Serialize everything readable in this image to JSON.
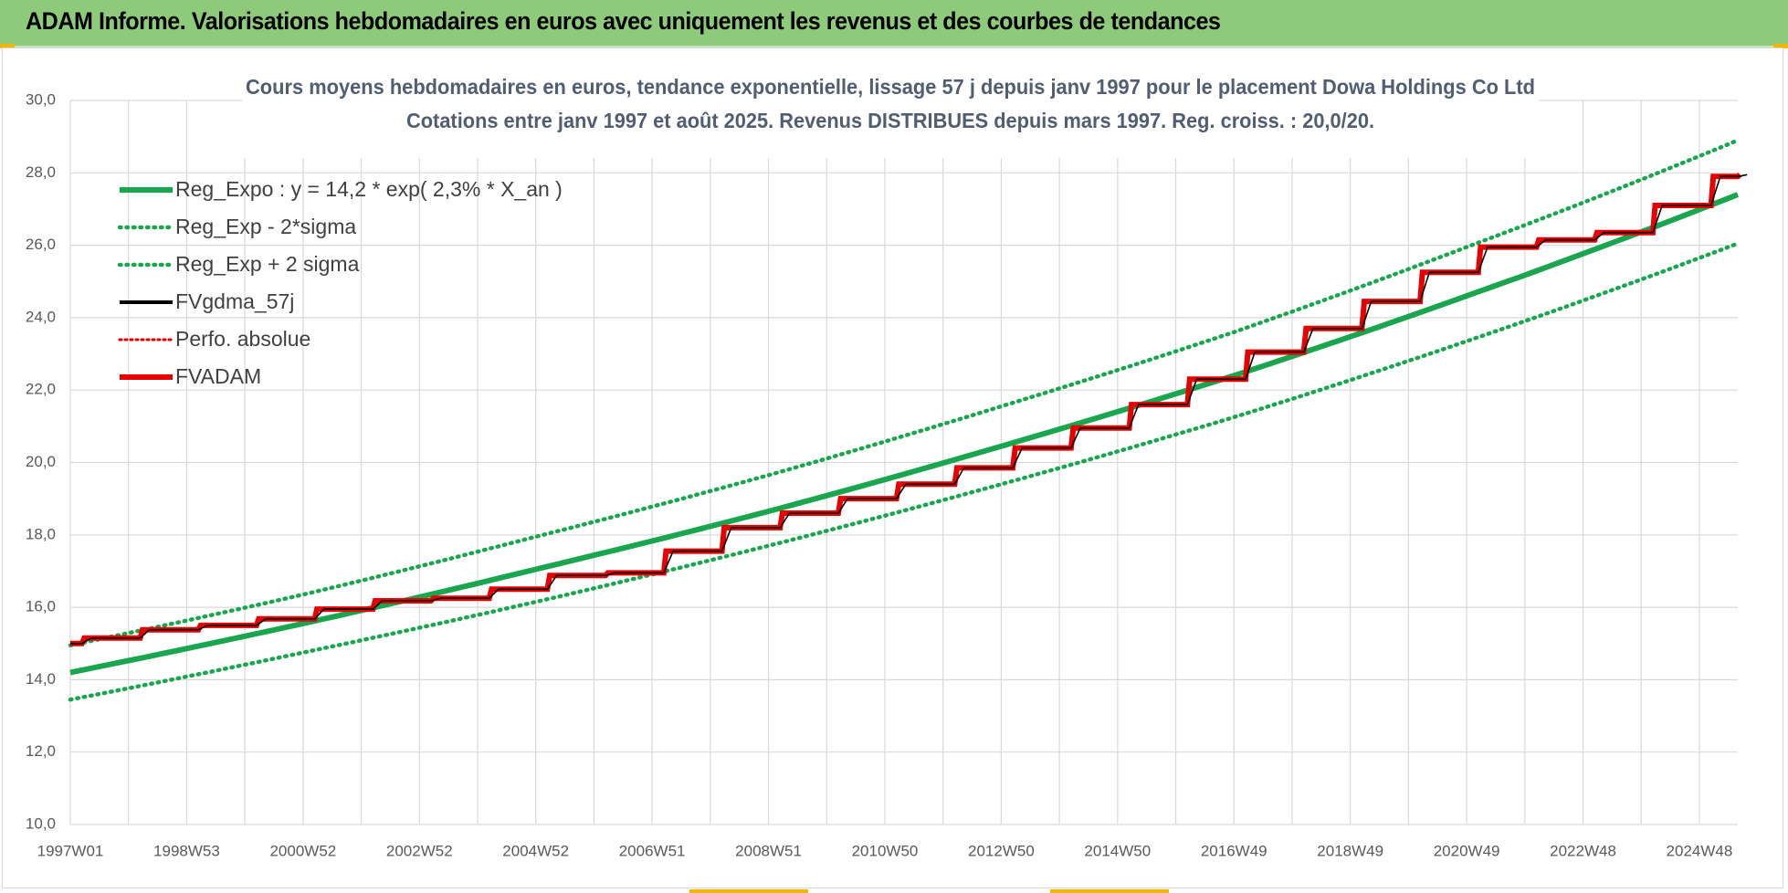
{
  "header": {
    "title": "ADAM Informe. Valorisations hebdomadaires en euros avec uniquement les revenus et des courbes de tendances"
  },
  "colors": {
    "header_bg": "#8dcb7a",
    "reg_expo": "#1aa64e",
    "sigma_bands": "#1aa64e",
    "fvgdma": "#000000",
    "perfo": "#e00000",
    "fvadam": "#e60000",
    "title_text": "#505d73"
  },
  "chart_data": {
    "type": "line",
    "title": [
      "Cours moyens hebdomadaires en euros, tendance exponentielle, lissage 57 j depuis janv 1997  pour le placement Dowa Holdings Co Ltd",
      "Cotations entre janv 1997 et août 2025.  Revenus DISTRIBUES depuis mars 1997. Reg. croiss. : 20,0/20."
    ],
    "xlabel": "",
    "ylabel": "",
    "ylim": [
      10,
      30
    ],
    "y_ticks": [
      "10,0",
      "12,0",
      "14,0",
      "16,0",
      "18,0",
      "20,0",
      "22,0",
      "24,0",
      "26,0",
      "28,0",
      "30,0"
    ],
    "x_range_years": [
      1997.0,
      2025.66
    ],
    "x_ticks": [
      {
        "label": "1997W01",
        "year": 1997.0
      },
      {
        "label": "1998W53",
        "year": 1999.0
      },
      {
        "label": "2000W52",
        "year": 2001.0
      },
      {
        "label": "2002W52",
        "year": 2003.0
      },
      {
        "label": "2004W52",
        "year": 2005.0
      },
      {
        "label": "2006W51",
        "year": 2007.0
      },
      {
        "label": "2008W51",
        "year": 2009.0
      },
      {
        "label": "2010W50",
        "year": 2011.0
      },
      {
        "label": "2012W50",
        "year": 2013.0
      },
      {
        "label": "2014W50",
        "year": 2015.0
      },
      {
        "label": "2016W49",
        "year": 2017.0
      },
      {
        "label": "2018W49",
        "year": 2019.0
      },
      {
        "label": "2020W49",
        "year": 2021.0
      },
      {
        "label": "2022W48",
        "year": 2023.0
      },
      {
        "label": "2024W48",
        "year": 2025.0
      }
    ],
    "grid": true,
    "legend_position": "top-left",
    "series": [
      {
        "name": "Reg_Expo : y = 14,2 * exp( 2,3% *  X_an )",
        "style": "solid-thick",
        "color": "#1aa64e",
        "x": [
          1997.0,
          2001.0,
          2005.0,
          2009.0,
          2013.0,
          2017.0,
          2021.0,
          2025.66
        ],
        "y": [
          14.2,
          15.55,
          17.05,
          18.65,
          20.45,
          22.4,
          24.6,
          27.4
        ]
      },
      {
        "name": "Reg_Exp - 2*sigma",
        "style": "dotted",
        "color": "#1aa64e",
        "x": [
          1997.0,
          2001.0,
          2005.0,
          2009.0,
          2013.0,
          2017.0,
          2021.0,
          2025.66
        ],
        "y": [
          13.45,
          14.75,
          16.15,
          17.7,
          19.4,
          21.25,
          23.35,
          26.05
        ]
      },
      {
        "name": "Reg_Exp + 2 sigma",
        "style": "dotted",
        "color": "#1aa64e",
        "x": [
          1997.0,
          2001.0,
          2005.0,
          2009.0,
          2013.0,
          2017.0,
          2021.0,
          2025.66
        ],
        "y": [
          14.95,
          16.35,
          17.95,
          19.65,
          21.55,
          23.6,
          25.95,
          28.9
        ]
      },
      {
        "name": "FVgdma_57j",
        "style": "solid",
        "color": "#000000",
        "x": [
          1997.0,
          1997.2,
          1998.2,
          1999.2,
          2000.2,
          2001.2,
          2002.2,
          2003.2,
          2004.2,
          2005.2,
          2006.2,
          2007.2,
          2008.2,
          2009.2,
          2010.2,
          2011.2,
          2012.2,
          2013.2,
          2014.2,
          2015.2,
          2016.2,
          2017.2,
          2018.2,
          2019.2,
          2020.2,
          2021.2,
          2022.2,
          2023.2,
          2024.2,
          2025.2,
          2025.66
        ],
        "y": [
          15.0,
          15.15,
          15.38,
          15.5,
          15.68,
          15.95,
          16.18,
          16.25,
          16.5,
          16.88,
          16.95,
          17.55,
          18.2,
          18.6,
          19.0,
          19.4,
          19.85,
          20.4,
          20.95,
          21.6,
          22.3,
          23.05,
          23.7,
          24.45,
          25.25,
          25.95,
          26.15,
          26.35,
          27.1,
          27.9,
          27.95
        ]
      },
      {
        "name": "Perfo. absolue",
        "style": "dotted",
        "color": "#e00000",
        "x": [],
        "y": []
      },
      {
        "name": "FVADAM",
        "style": "step-thick",
        "color": "#e60000",
        "x": [
          1997.0,
          1997.2,
          1998.2,
          1999.2,
          2000.2,
          2001.2,
          2002.2,
          2003.2,
          2004.2,
          2005.2,
          2006.2,
          2007.2,
          2008.2,
          2009.2,
          2010.2,
          2011.2,
          2012.2,
          2013.2,
          2014.2,
          2015.2,
          2016.2,
          2017.2,
          2018.2,
          2019.2,
          2020.2,
          2021.2,
          2022.2,
          2023.2,
          2024.2,
          2025.2,
          2025.66
        ],
        "y": [
          15.0,
          15.15,
          15.38,
          15.5,
          15.68,
          15.95,
          16.18,
          16.25,
          16.5,
          16.88,
          16.95,
          17.55,
          18.2,
          18.6,
          19.0,
          19.4,
          19.85,
          20.4,
          20.95,
          21.6,
          22.3,
          23.05,
          23.7,
          24.45,
          25.25,
          25.95,
          26.15,
          26.35,
          27.1,
          27.9,
          27.95
        ]
      }
    ]
  }
}
